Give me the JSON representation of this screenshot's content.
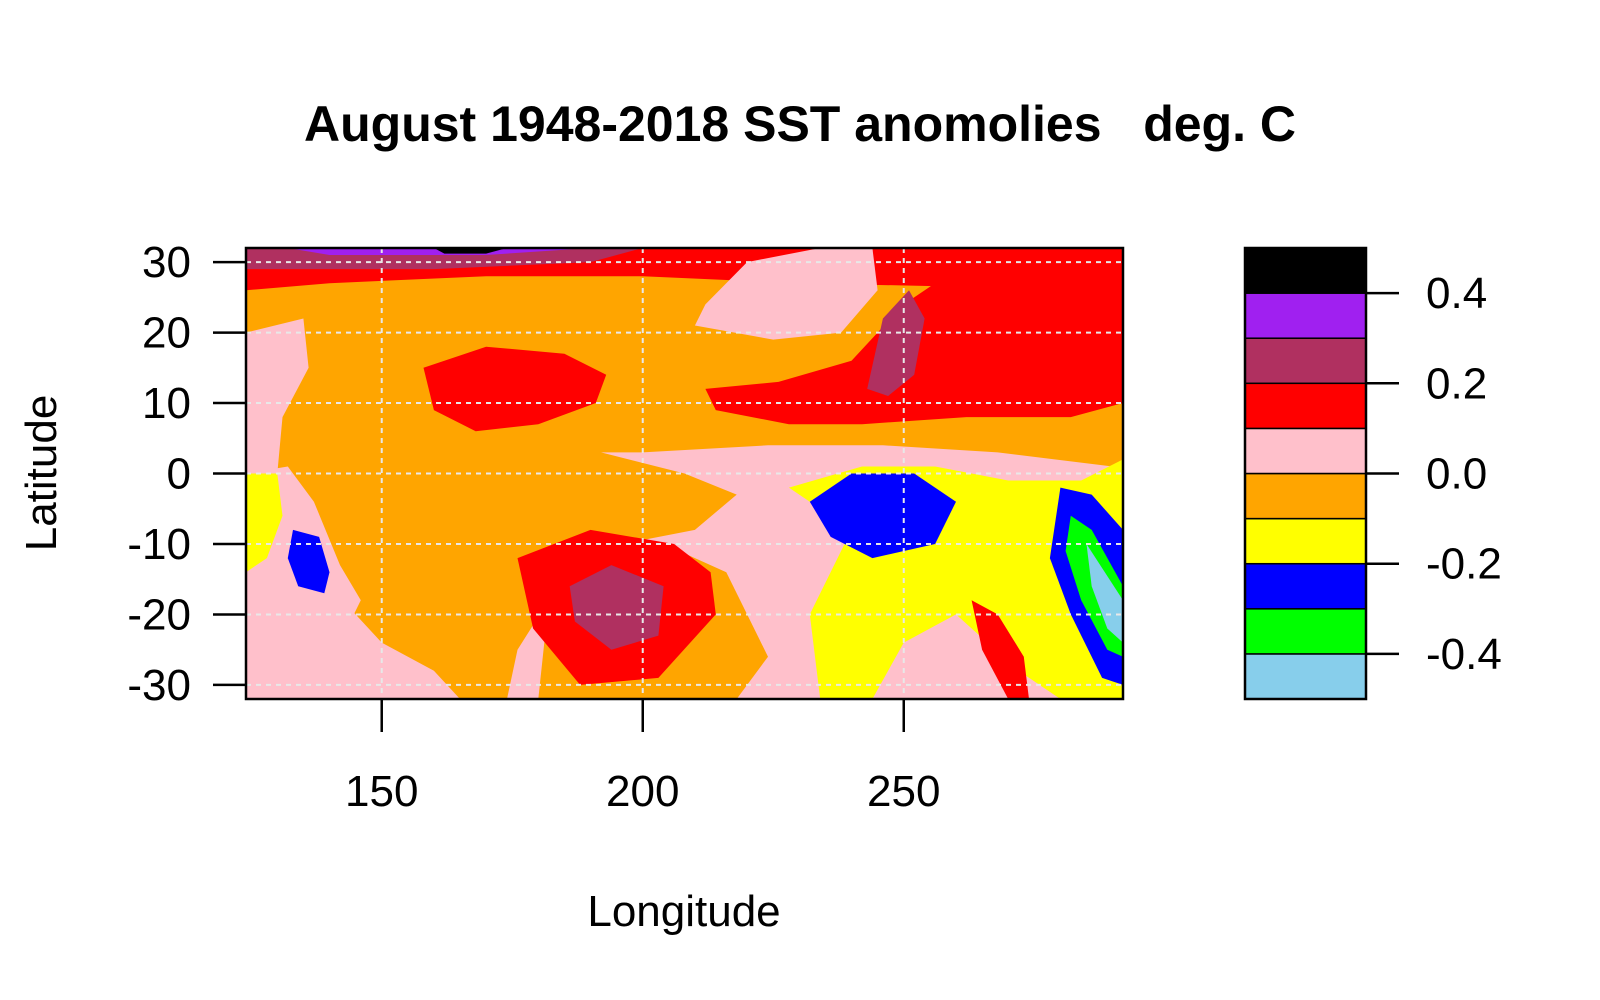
{
  "chart_data": {
    "type": "heatmap",
    "title": "August 1948-2018 SST anomolies   deg. C",
    "xlabel": "Longitude",
    "ylabel": "Latitude",
    "xlim": [
      124,
      292
    ],
    "ylim": [
      -32,
      32
    ],
    "x_ticks": [
      150,
      200,
      250
    ],
    "y_ticks": [
      30,
      20,
      10,
      0,
      -10,
      -20,
      -30
    ],
    "grid": true,
    "legend": {
      "placement": "right",
      "levels": [
        -0.5,
        -0.4,
        -0.3,
        -0.2,
        -0.1,
        0.0,
        0.1,
        0.2,
        0.3,
        0.4,
        0.5
      ],
      "colors": [
        "#87CEEB",
        "#00FF00",
        "#0000FF",
        "#FFFF00",
        "#FFA500",
        "#FFC0CB",
        "#FF0000",
        "#B03060",
        "#A020F0",
        "#000000"
      ],
      "tick_values": [
        0.4,
        0.2,
        0.0,
        -0.2,
        -0.4
      ],
      "tick_labels": [
        "0.4",
        "0.2",
        "0.0",
        "-0.2",
        "-0.4"
      ]
    },
    "fill_region": {
      "lon_min": 124,
      "lon_max": 292,
      "lat_min": -32,
      "lat_max": 32,
      "fill_class": 5
    },
    "anomaly_regions": [
      {
        "class": 7,
        "polygon": [
          [
            124,
            32
          ],
          [
            292,
            32
          ],
          [
            292,
            26
          ],
          [
            230,
            27
          ],
          [
            200,
            28
          ],
          [
            170,
            28
          ],
          [
            140,
            27
          ],
          [
            124,
            26
          ]
        ]
      },
      {
        "class": 8,
        "polygon": [
          [
            124,
            32
          ],
          [
            200,
            32
          ],
          [
            190,
            30
          ],
          [
            160,
            29
          ],
          [
            140,
            29
          ],
          [
            124,
            29
          ]
        ]
      },
      {
        "class": 9,
        "polygon": [
          [
            132,
            32
          ],
          [
            190,
            32
          ],
          [
            170,
            31
          ],
          [
            140,
            31
          ]
        ]
      },
      {
        "class": 10,
        "polygon": [
          [
            160,
            32
          ],
          [
            174,
            32
          ],
          [
            170,
            31.2
          ],
          [
            162,
            31.2
          ]
        ]
      },
      {
        "class": 6,
        "polygon": [
          [
            124,
            20
          ],
          [
            135,
            22
          ],
          [
            136,
            15
          ],
          [
            131,
            8
          ],
          [
            130,
            0
          ],
          [
            132,
            -8
          ],
          [
            140,
            -16
          ],
          [
            150,
            -24
          ],
          [
            160,
            -28
          ],
          [
            165,
            -32
          ],
          [
            124,
            -32
          ]
        ]
      },
      {
        "class": 7,
        "polygon": [
          [
            158,
            15
          ],
          [
            170,
            18
          ],
          [
            185,
            17
          ],
          [
            193,
            14
          ],
          [
            191,
            10
          ],
          [
            180,
            7
          ],
          [
            168,
            6
          ],
          [
            160,
            9
          ]
        ]
      },
      {
        "class": 6,
        "polygon": [
          [
            212,
            24
          ],
          [
            220,
            30
          ],
          [
            234,
            32
          ],
          [
            244,
            32
          ],
          [
            245,
            26
          ],
          [
            238,
            20
          ],
          [
            225,
            19
          ],
          [
            210,
            21
          ]
        ]
      },
      {
        "class": 7,
        "polygon": [
          [
            212,
            12
          ],
          [
            226,
            13
          ],
          [
            240,
            16
          ],
          [
            250,
            24
          ],
          [
            262,
            30
          ],
          [
            292,
            32
          ],
          [
            292,
            10
          ],
          [
            282,
            8
          ],
          [
            262,
            8
          ],
          [
            242,
            7
          ],
          [
            228,
            7
          ],
          [
            214,
            9
          ]
        ]
      },
      {
        "class": 8,
        "polygon": [
          [
            243,
            12
          ],
          [
            246,
            22
          ],
          [
            251,
            26
          ],
          [
            254,
            22
          ],
          [
            252,
            14
          ],
          [
            247,
            11
          ]
        ]
      },
      {
        "class": 6,
        "polygon": [
          [
            192,
            3
          ],
          [
            200,
            3
          ],
          [
            224,
            4
          ],
          [
            246,
            4
          ],
          [
            268,
            3
          ],
          [
            290,
            1
          ],
          [
            292,
            -32
          ],
          [
            174,
            -32
          ],
          [
            176,
            -25
          ],
          [
            182,
            -18
          ],
          [
            196,
            -10
          ],
          [
            210,
            -8
          ],
          [
            218,
            -3
          ],
          [
            208,
            0
          ]
        ]
      },
      {
        "class": 5,
        "polygon": [
          [
            180,
            -32
          ],
          [
            218,
            -32
          ],
          [
            224,
            -26
          ],
          [
            216,
            -14
          ],
          [
            204,
            -10
          ],
          [
            190,
            -10
          ],
          [
            182,
            -18
          ]
        ]
      },
      {
        "class": 7,
        "polygon": [
          [
            176,
            -12
          ],
          [
            190,
            -8
          ],
          [
            206,
            -10
          ],
          [
            213,
            -14
          ],
          [
            214,
            -20
          ],
          [
            203,
            -29
          ],
          [
            188,
            -30
          ],
          [
            179,
            -22
          ]
        ]
      },
      {
        "class": 8,
        "polygon": [
          [
            186,
            -16
          ],
          [
            194,
            -13
          ],
          [
            204,
            -16
          ],
          [
            203,
            -23
          ],
          [
            194,
            -25
          ],
          [
            187,
            -21
          ]
        ]
      },
      {
        "class": 4,
        "polygon": [
          [
            228,
            -2
          ],
          [
            242,
            1
          ],
          [
            256,
            1
          ],
          [
            270,
            -1
          ],
          [
            284,
            -1
          ],
          [
            292,
            2
          ],
          [
            292,
            -32
          ],
          [
            280,
            -32
          ],
          [
            272,
            -28
          ],
          [
            260,
            -20
          ],
          [
            250,
            -24
          ],
          [
            244,
            -32
          ],
          [
            234,
            -32
          ],
          [
            232,
            -20
          ],
          [
            240,
            -8
          ]
        ]
      },
      {
        "class": 3,
        "polygon": [
          [
            232,
            -4
          ],
          [
            240,
            0
          ],
          [
            252,
            0
          ],
          [
            260,
            -4
          ],
          [
            256,
            -10
          ],
          [
            244,
            -12
          ],
          [
            236,
            -9
          ]
        ]
      },
      {
        "class": 3,
        "polygon": [
          [
            280,
            -2
          ],
          [
            286,
            -3
          ],
          [
            292,
            -8
          ],
          [
            292,
            -30
          ],
          [
            288,
            -29
          ],
          [
            282,
            -20
          ],
          [
            278,
            -12
          ]
        ]
      },
      {
        "class": 2,
        "polygon": [
          [
            282,
            -6
          ],
          [
            286,
            -8
          ],
          [
            292,
            -16
          ],
          [
            292,
            -26
          ],
          [
            289,
            -25
          ],
          [
            284,
            -18
          ],
          [
            281,
            -11
          ]
        ]
      },
      {
        "class": 1,
        "polygon": [
          [
            285,
            -10
          ],
          [
            292,
            -18
          ],
          [
            292,
            -24
          ],
          [
            289,
            -22
          ],
          [
            286,
            -16
          ]
        ]
      },
      {
        "class": 6,
        "polygon": [
          [
            124,
            0
          ],
          [
            132,
            1
          ],
          [
            137,
            -4
          ],
          [
            142,
            -13
          ],
          [
            146,
            -18
          ],
          [
            142,
            -24
          ],
          [
            128,
            -22
          ],
          [
            124,
            -18
          ]
        ]
      },
      {
        "class": 4,
        "polygon": [
          [
            124,
            0
          ],
          [
            130,
            0
          ],
          [
            131,
            -6
          ],
          [
            128,
            -12
          ],
          [
            124,
            -14
          ]
        ]
      },
      {
        "class": 3,
        "polygon": [
          [
            133,
            -8
          ],
          [
            138,
            -9
          ],
          [
            140,
            -14
          ],
          [
            139,
            -17
          ],
          [
            134,
            -16
          ],
          [
            132,
            -12
          ]
        ]
      },
      {
        "class": 7,
        "polygon": [
          [
            263,
            -18
          ],
          [
            268,
            -20
          ],
          [
            273,
            -26
          ],
          [
            274,
            -32
          ],
          [
            270,
            -32
          ],
          [
            265,
            -25
          ]
        ]
      }
    ]
  }
}
